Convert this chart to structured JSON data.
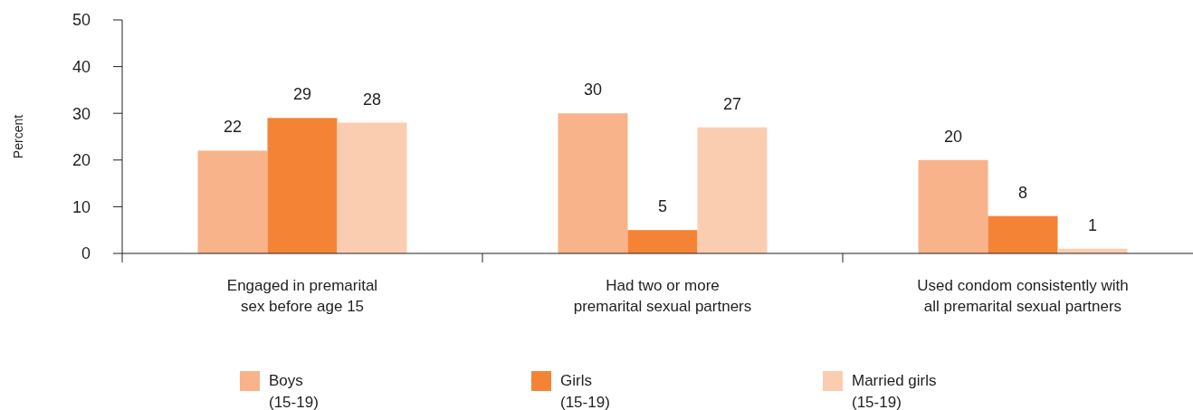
{
  "chart_data": {
    "type": "bar",
    "ylabel": "Percent",
    "categories": [
      "Engaged in premarital sex before age 15",
      "Had two or more premarital sexual partners",
      "Used condom consistently with all premarital sexual partners"
    ],
    "series": [
      {
        "name": "Boys (15-19)",
        "color": "#f8b38a",
        "values": [
          22,
          30,
          20
        ]
      },
      {
        "name": "Girls (15-19)",
        "color": "#f58336",
        "values": [
          29,
          5,
          8
        ]
      },
      {
        "name": "Married girls (15-19)",
        "color": "#fbcdb0",
        "values": [
          28,
          27,
          1
        ]
      }
    ],
    "ylim": [
      0,
      50
    ],
    "yticks": [
      0,
      10,
      20,
      30,
      40,
      50
    ],
    "data_labels": true,
    "legend": "bottom",
    "grid": false
  }
}
